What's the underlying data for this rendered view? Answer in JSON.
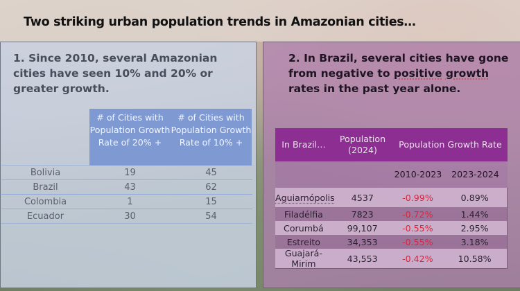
{
  "slide": {
    "title": "Two striking urban population trends in Amazonian cities…"
  },
  "left_panel": {
    "heading": "1. Since 2010, several Amazonian cities have seen 10% and 20% or greater growth.",
    "table": {
      "columns": [
        "",
        "# of Cities with Population Growth Rate of 20% +",
        "# of Cities with Population Growth Rate of 10% +"
      ],
      "rows": [
        [
          "Bolivia",
          "19",
          "45"
        ],
        [
          "Brazil",
          "43",
          "62"
        ],
        [
          "Colombia",
          "1",
          "15"
        ],
        [
          "Ecuador",
          "30",
          "54"
        ]
      ]
    }
  },
  "right_panel": {
    "heading_parts": {
      "before": "2. In Brazil, several cities have gone from negative to ",
      "spell1": "positive",
      "mid": " ",
      "spell2": "growth",
      "after": " rates in the past year alone."
    },
    "table": {
      "header": {
        "col0": "In Brazil…",
        "col1": "Population (2024)",
        "col2": "Population Growth Rate"
      },
      "subheader": {
        "col2": "2010-2023",
        "col3": "2023-2024"
      },
      "rows": [
        [
          "Aguiarnópolis",
          "4537",
          "-0.99%",
          "0.89%"
        ],
        [
          "Filadélfia",
          "7823",
          "-0.72%",
          "1.44%"
        ],
        [
          "Corumbá",
          "99,107",
          "-0.55%",
          "2.95%"
        ],
        [
          "Estreito",
          "34,353",
          "-0.55%",
          "3.18%"
        ],
        [
          "Guajará-Mirim",
          "43,553",
          "-0.42%",
          "10.58%"
        ]
      ]
    }
  },
  "colors": {
    "left_header_bg": "#7f9ad3",
    "right_header_bg": "#8d2e93",
    "negative_value": "#d7263d"
  }
}
